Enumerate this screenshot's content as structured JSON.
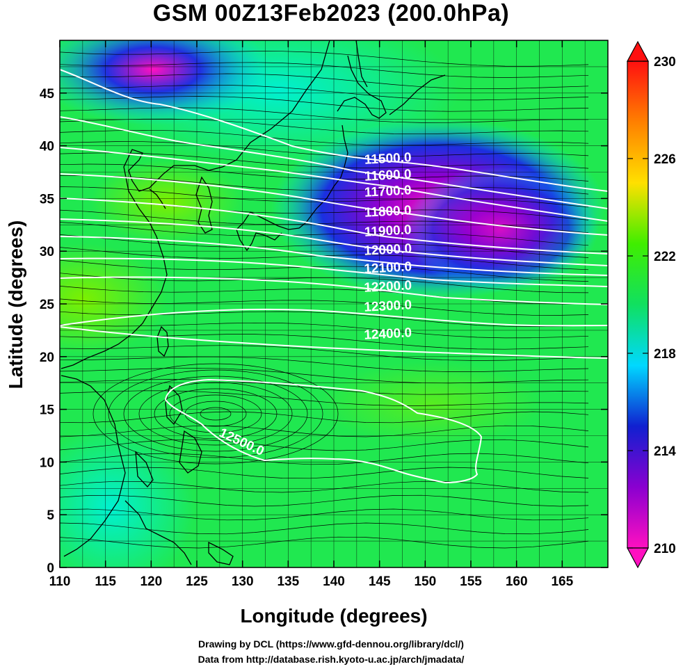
{
  "title": "GSM 00Z13Feb2023 (200.0hPa)",
  "x_axis": {
    "label": "Longitude (degrees)",
    "range": [
      110,
      170
    ],
    "ticks": [
      110,
      115,
      120,
      125,
      130,
      135,
      140,
      145,
      150,
      155,
      160,
      165
    ]
  },
  "y_axis": {
    "label": "Latitude  (degrees)",
    "range": [
      0,
      50
    ],
    "ticks": [
      0,
      5,
      10,
      15,
      20,
      25,
      30,
      35,
      40,
      45
    ]
  },
  "contours": {
    "color": "#ffffff",
    "labels": [
      "11500.0",
      "11600.0",
      "11700.0",
      "11800.0",
      "11900.0",
      "12000.0",
      "12100.0",
      "12200.0",
      "12300.0",
      "12400.0",
      "12500.0"
    ]
  },
  "colorbar": {
    "range": [
      210,
      230
    ],
    "labels": [
      "230",
      "226",
      "222",
      "218",
      "214",
      "210"
    ],
    "stops": [
      "#ff10c0",
      "#8a00d0",
      "#1020d0",
      "#00d8ff",
      "#10e060",
      "#40ee00",
      "#ffe000",
      "#ff8000",
      "#ff1010"
    ]
  },
  "credits": {
    "line1": "Drawing by DCL (https://www.gfd-dennou.org/library/dcl/)",
    "line2": "Data from http://database.rish.kyoto-u.ac.jp/arch/jmadata/"
  }
}
